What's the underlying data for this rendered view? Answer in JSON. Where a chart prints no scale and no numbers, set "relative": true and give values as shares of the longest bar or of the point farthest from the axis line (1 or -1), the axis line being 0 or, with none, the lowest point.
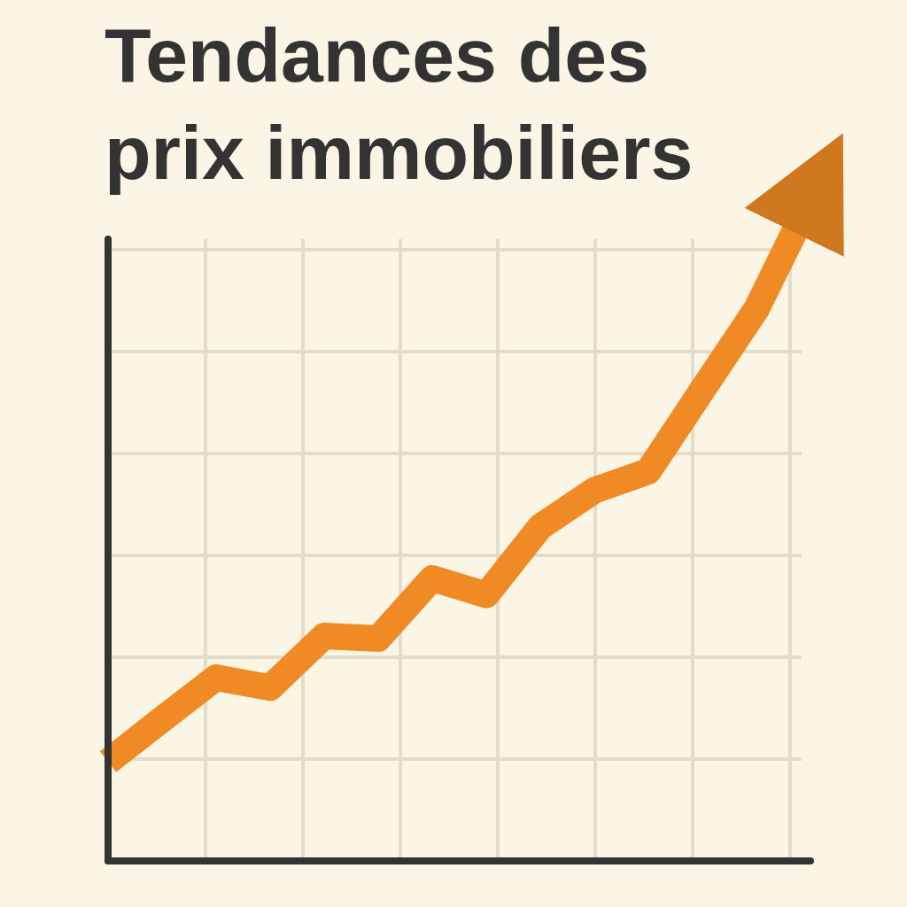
{
  "chart_data": {
    "type": "line",
    "title": "Tendances des prix immobiliers",
    "relative": true,
    "categories": [
      null,
      null,
      null,
      null,
      null,
      null,
      null,
      null,
      null,
      null,
      null,
      null,
      null,
      null
    ],
    "series": [
      {
        "color": "#f08a24",
        "values": [
          0.15,
          0.214,
          0.277,
          0.262,
          0.34,
          0.336,
          0.427,
          0.402,
          0.505,
          0.56,
          0.589,
          0.712,
          0.834,
          1.0
        ]
      }
    ],
    "grid": true,
    "marker": "none",
    "line_style": "solid"
  }
}
